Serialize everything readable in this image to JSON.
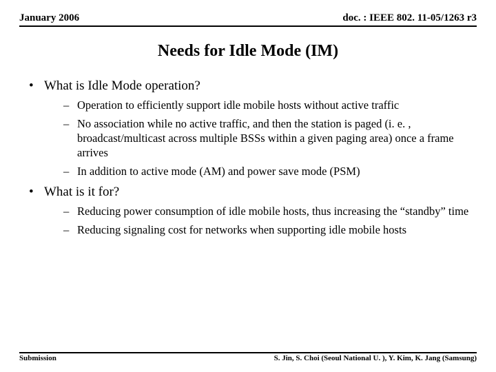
{
  "header": {
    "left": "January 2006",
    "right": "doc. : IEEE 802. 11-05/1263 r3"
  },
  "title": "Needs for Idle Mode (IM)",
  "bullets": [
    {
      "text": "What is Idle Mode operation?",
      "children": [
        "Operation to efficiently support idle mobile hosts without active traffic",
        "No association while no active traffic, and then the station is paged (i. e. , broadcast/multicast across multiple BSSs within a given paging area) once a frame arrives",
        "In addition to active mode (AM) and power save mode (PSM)"
      ]
    },
    {
      "text": "What is it for?",
      "children": [
        "Reducing power consumption of idle mobile hosts, thus increasing the “standby” time",
        "Reducing signaling cost for networks when supporting idle mobile hosts"
      ]
    }
  ],
  "footer": {
    "left": "Submission",
    "right": "S. Jin, S. Choi (Seoul National U. ), Y. Kim, K. Jang (Samsung)"
  },
  "colors": {
    "background": "#ffffff",
    "text": "#000000",
    "rule": "#000000"
  }
}
